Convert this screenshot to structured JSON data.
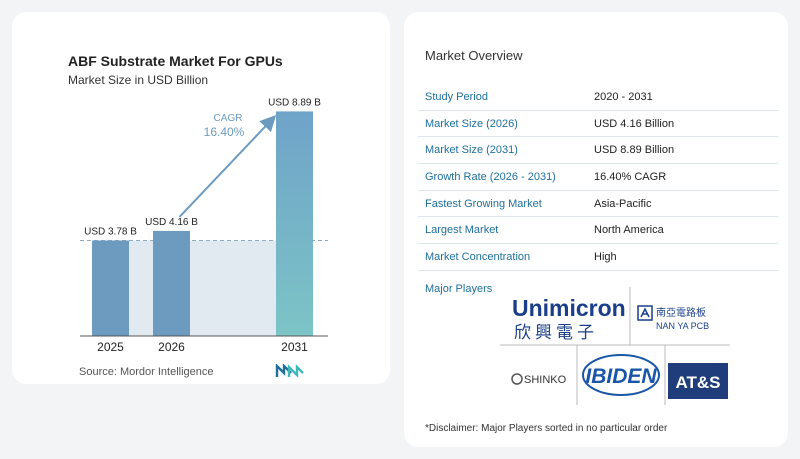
{
  "chart": {
    "title": "ABF Substrate Market For GPUs",
    "subtitle": "Market Size in USD Billion",
    "source": "Source: Mordor Intelligence",
    "cagr_label": "CAGR",
    "cagr_value": "16.40%",
    "colors": {
      "bar": "#6c9bbf",
      "bar_light": "#dfe9f1",
      "arrow": "#6c9bbf",
      "last_bar_top": "#6fa3c9",
      "last_bar_bottom": "#7bc6c7"
    }
  },
  "chart_data": {
    "type": "bar",
    "title": "ABF Substrate Market For GPUs",
    "subtitle": "Market Size in USD Billion",
    "categories": [
      "2025",
      "2026",
      "2031"
    ],
    "values": [
      3.78,
      4.16,
      8.89
    ],
    "data_labels": [
      "USD 3.78 B",
      "USD 4.16 B",
      "USD 8.89 B"
    ],
    "ylim": [
      0,
      9.5
    ],
    "grid": false,
    "annotation": "CAGR 16.40%"
  },
  "overview": {
    "title": "Market Overview",
    "rows": [
      {
        "label": "Study Period",
        "value": "2020 - 2031"
      },
      {
        "label": "Market Size (2026)",
        "value": "USD 4.16 Billion"
      },
      {
        "label": "Market Size (2031)",
        "value": "USD 8.89 Billion"
      },
      {
        "label": "Growth Rate (2026 - 2031)",
        "value": "16.40% CAGR"
      },
      {
        "label": "Fastest Growing Market",
        "value": "Asia-Pacific"
      },
      {
        "label": "Largest Market",
        "value": "North America"
      },
      {
        "label": "Market Concentration",
        "value": "High"
      }
    ]
  },
  "players": {
    "title": "Major Players",
    "unimicron_en": "Unimicron",
    "unimicron_cn": "欣興電子",
    "nanya_cn": "南亞電路板",
    "nanya_en": "NAN YA PCB",
    "shinko": "SHINKO",
    "ibiden": "IBIDEN",
    "ats": "AT&S"
  },
  "disclaimer": "*Disclaimer: Major Players sorted in no particular order"
}
